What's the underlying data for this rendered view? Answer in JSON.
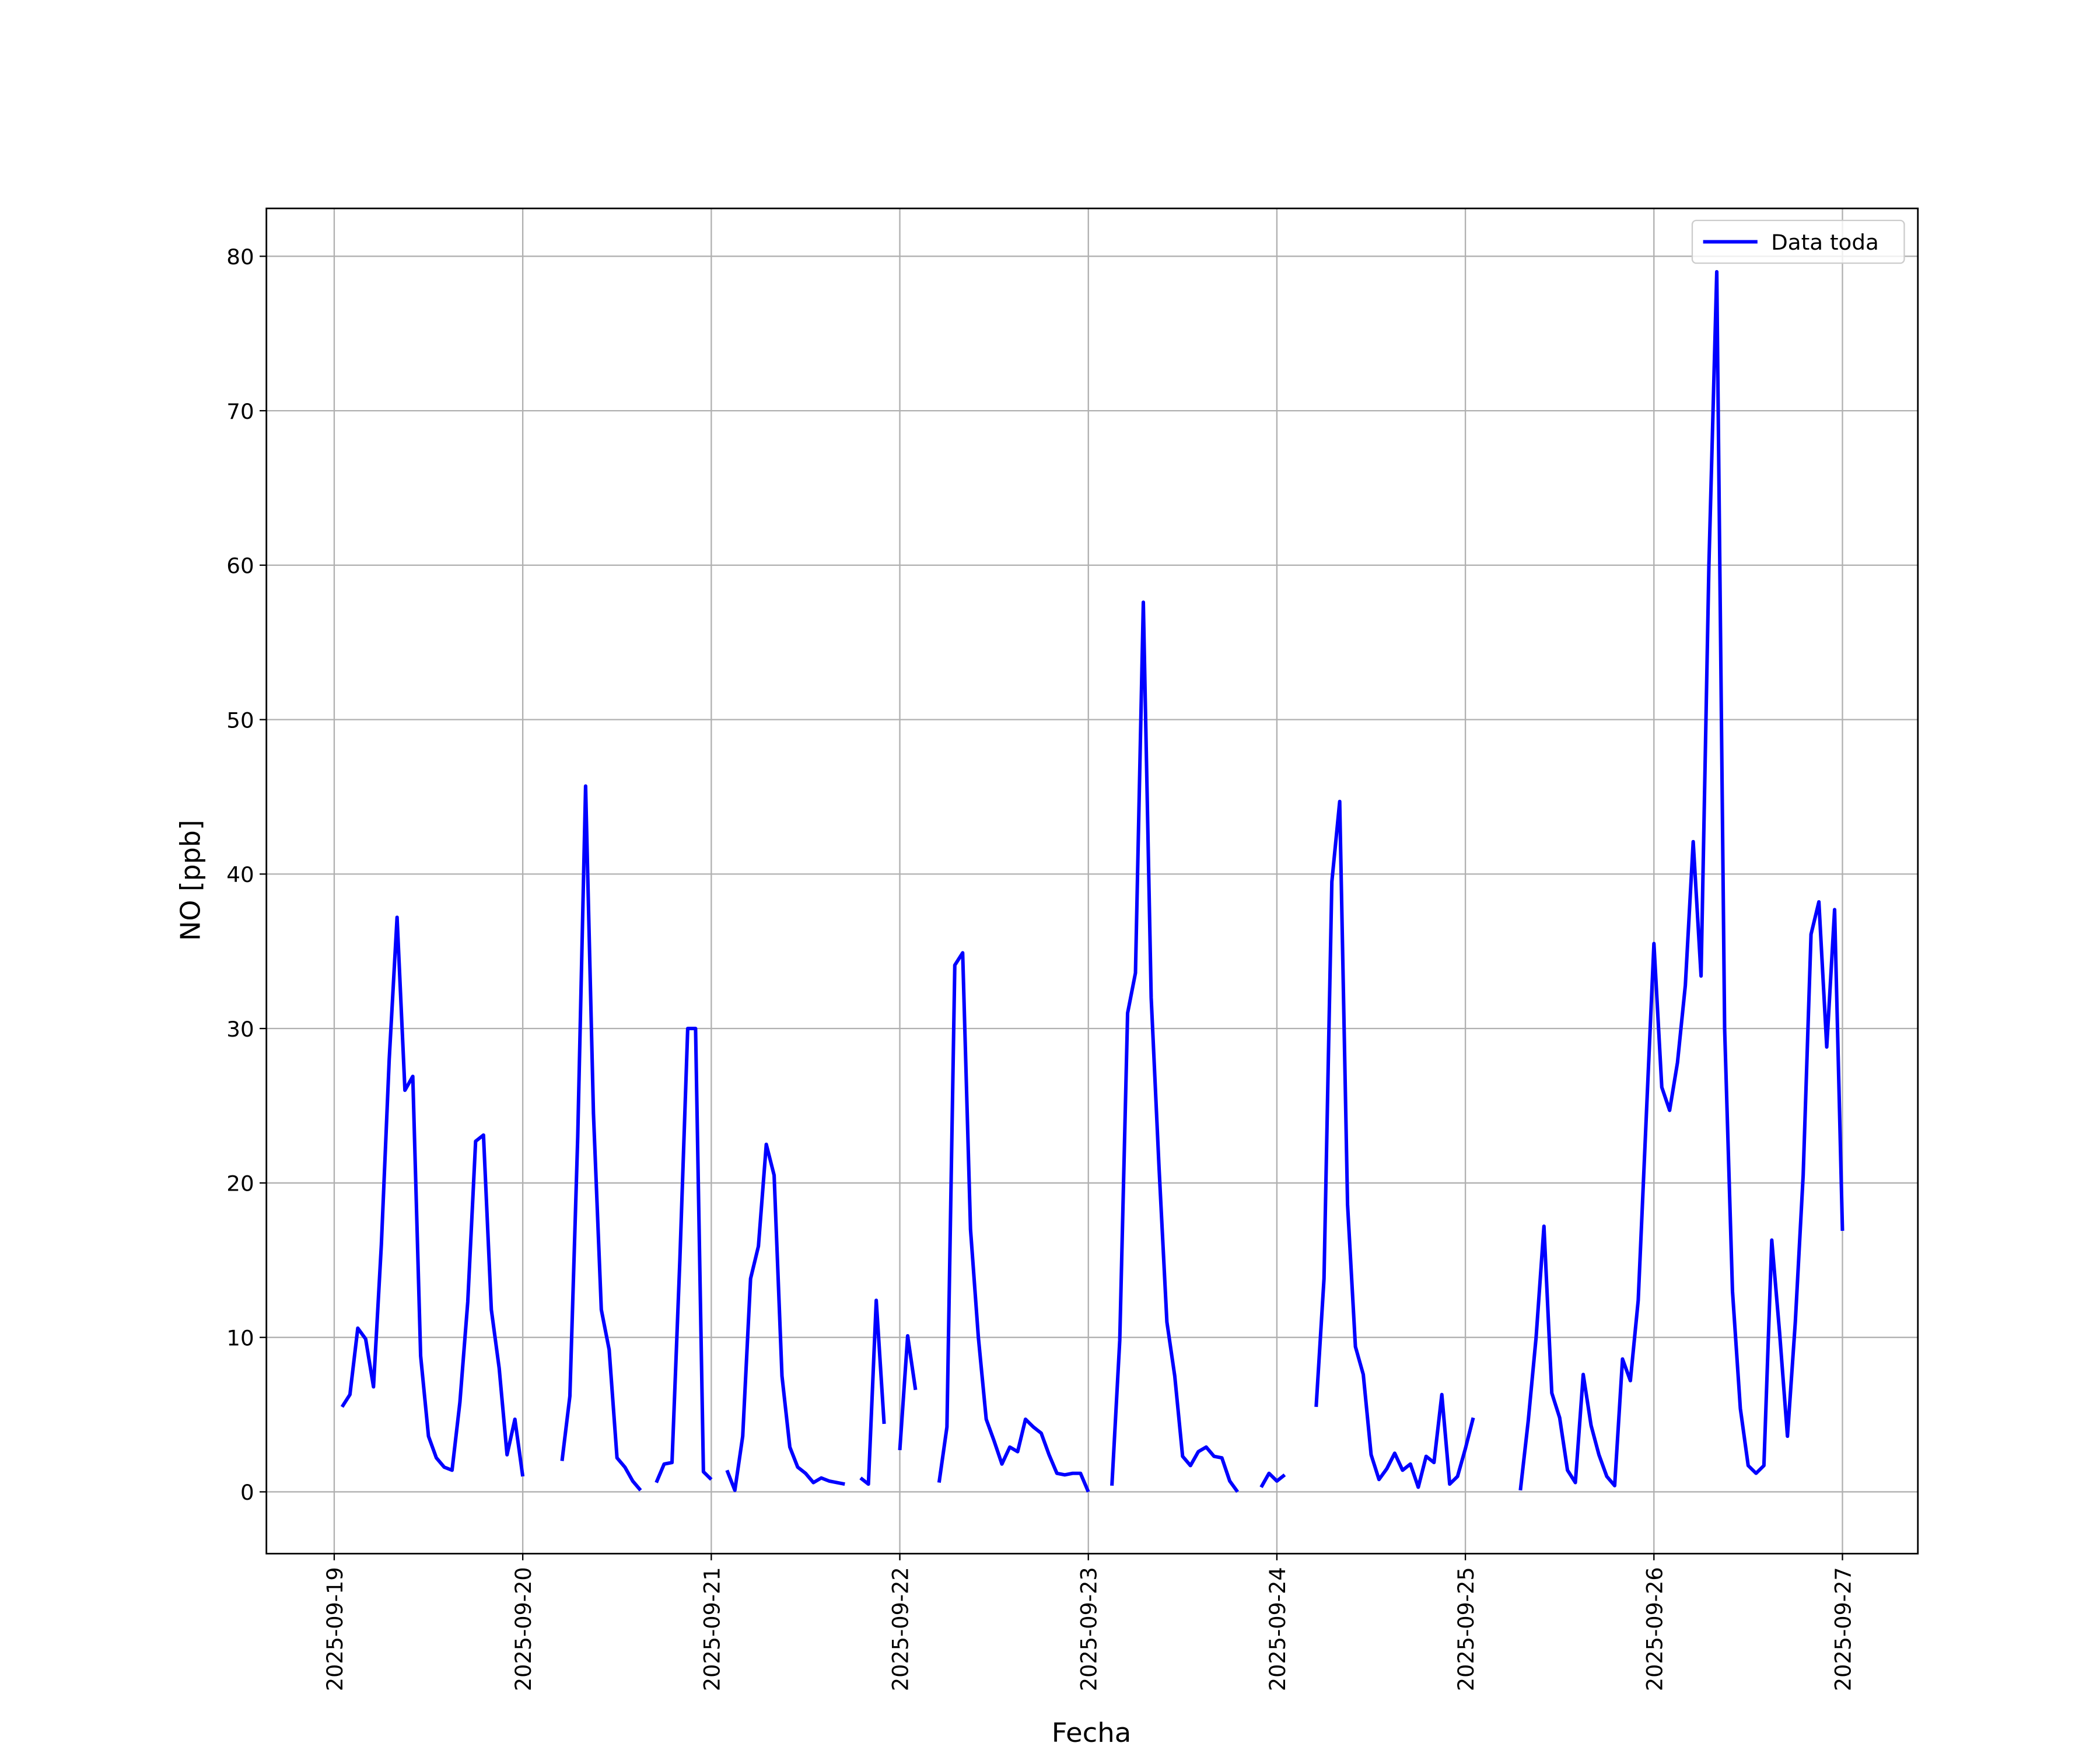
{
  "chart_data": {
    "type": "line",
    "xlabel": "Fecha",
    "ylabel": "NO [ppb]",
    "x": [
      "2025-09-19 01:00",
      "2025-09-19 02:00",
      "2025-09-19 03:00",
      "2025-09-19 04:00",
      "2025-09-19 05:00",
      "2025-09-19 06:00",
      "2025-09-19 07:00",
      "2025-09-19 08:00",
      "2025-09-19 09:00",
      "2025-09-19 10:00",
      "2025-09-19 11:00",
      "2025-09-19 12:00",
      "2025-09-19 13:00",
      "2025-09-19 14:00",
      "2025-09-19 15:00",
      "2025-09-19 16:00",
      "2025-09-19 17:00",
      "2025-09-19 18:00",
      "2025-09-19 19:00",
      "2025-09-19 20:00",
      "2025-09-19 21:00",
      "2025-09-19 22:00",
      "2025-09-19 23:00",
      "2025-09-20 00:00",
      "2025-09-20 01:00",
      "2025-09-20 02:00",
      "2025-09-20 03:00",
      "2025-09-20 04:00",
      "2025-09-20 05:00",
      "2025-09-20 06:00",
      "2025-09-20 07:00",
      "2025-09-20 08:00",
      "2025-09-20 09:00",
      "2025-09-20 10:00",
      "2025-09-20 11:00",
      "2025-09-20 12:00",
      "2025-09-20 13:00",
      "2025-09-20 14:00",
      "2025-09-20 15:00",
      "2025-09-20 16:00",
      "2025-09-20 17:00",
      "2025-09-20 18:00",
      "2025-09-20 19:00",
      "2025-09-20 20:00",
      "2025-09-20 21:00",
      "2025-09-20 22:00",
      "2025-09-20 23:00",
      "2025-09-21 00:00",
      "2025-09-21 01:00",
      "2025-09-21 02:00",
      "2025-09-21 03:00",
      "2025-09-21 04:00",
      "2025-09-21 05:00",
      "2025-09-21 06:00",
      "2025-09-21 07:00",
      "2025-09-21 08:00",
      "2025-09-21 09:00",
      "2025-09-21 10:00",
      "2025-09-21 11:00",
      "2025-09-21 12:00",
      "2025-09-21 13:00",
      "2025-09-21 14:00",
      "2025-09-21 15:00",
      "2025-09-21 16:00",
      "2025-09-21 17:00",
      "2025-09-21 18:00",
      "2025-09-21 19:00",
      "2025-09-21 20:00",
      "2025-09-21 21:00",
      "2025-09-21 22:00",
      "2025-09-21 23:00",
      "2025-09-22 00:00",
      "2025-09-22 01:00",
      "2025-09-22 02:00",
      "2025-09-22 03:00",
      "2025-09-22 04:00",
      "2025-09-22 05:00",
      "2025-09-22 06:00",
      "2025-09-22 07:00",
      "2025-09-22 08:00",
      "2025-09-22 09:00",
      "2025-09-22 10:00",
      "2025-09-22 11:00",
      "2025-09-22 12:00",
      "2025-09-22 13:00",
      "2025-09-22 14:00",
      "2025-09-22 15:00",
      "2025-09-22 16:00",
      "2025-09-22 17:00",
      "2025-09-22 18:00",
      "2025-09-22 19:00",
      "2025-09-22 20:00",
      "2025-09-22 21:00",
      "2025-09-22 22:00",
      "2025-09-22 23:00",
      "2025-09-23 00:00",
      "2025-09-23 01:00",
      "2025-09-23 02:00",
      "2025-09-23 03:00",
      "2025-09-23 04:00",
      "2025-09-23 05:00",
      "2025-09-23 06:00",
      "2025-09-23 07:00",
      "2025-09-23 08:00",
      "2025-09-23 09:00",
      "2025-09-23 10:00",
      "2025-09-23 11:00",
      "2025-09-23 12:00",
      "2025-09-23 13:00",
      "2025-09-23 14:00",
      "2025-09-23 15:00",
      "2025-09-23 16:00",
      "2025-09-23 17:00",
      "2025-09-23 18:00",
      "2025-09-23 19:00",
      "2025-09-23 20:00",
      "2025-09-23 21:00",
      "2025-09-23 22:00",
      "2025-09-23 23:00",
      "2025-09-24 00:00",
      "2025-09-24 01:00",
      "2025-09-24 02:00",
      "2025-09-24 03:00",
      "2025-09-24 04:00",
      "2025-09-24 05:00",
      "2025-09-24 06:00",
      "2025-09-24 07:00",
      "2025-09-24 08:00",
      "2025-09-24 09:00",
      "2025-09-24 10:00",
      "2025-09-24 11:00",
      "2025-09-24 12:00",
      "2025-09-24 13:00",
      "2025-09-24 14:00",
      "2025-09-24 15:00",
      "2025-09-24 16:00",
      "2025-09-24 17:00",
      "2025-09-24 18:00",
      "2025-09-24 19:00",
      "2025-09-24 20:00",
      "2025-09-24 21:00",
      "2025-09-24 22:00",
      "2025-09-24 23:00",
      "2025-09-25 00:00",
      "2025-09-25 01:00",
      "2025-09-25 02:00",
      "2025-09-25 03:00",
      "2025-09-25 04:00",
      "2025-09-25 05:00",
      "2025-09-25 06:00",
      "2025-09-25 07:00",
      "2025-09-25 08:00",
      "2025-09-25 09:00",
      "2025-09-25 10:00",
      "2025-09-25 11:00",
      "2025-09-25 12:00",
      "2025-09-25 13:00",
      "2025-09-25 14:00",
      "2025-09-25 15:00",
      "2025-09-25 16:00",
      "2025-09-25 17:00",
      "2025-09-25 18:00",
      "2025-09-25 19:00",
      "2025-09-25 20:00",
      "2025-09-25 21:00",
      "2025-09-25 22:00",
      "2025-09-25 23:00",
      "2025-09-26 00:00",
      "2025-09-26 01:00",
      "2025-09-26 02:00",
      "2025-09-26 03:00",
      "2025-09-26 04:00",
      "2025-09-26 05:00",
      "2025-09-26 06:00",
      "2025-09-26 07:00",
      "2025-09-26 08:00",
      "2025-09-26 09:00",
      "2025-09-26 10:00",
      "2025-09-26 11:00",
      "2025-09-26 12:00",
      "2025-09-26 13:00",
      "2025-09-26 14:00",
      "2025-09-26 15:00",
      "2025-09-26 16:00",
      "2025-09-26 17:00",
      "2025-09-26 18:00",
      "2025-09-26 19:00",
      "2025-09-26 20:00",
      "2025-09-26 21:00",
      "2025-09-26 22:00",
      "2025-09-26 23:00",
      "2025-09-27 00:00"
    ],
    "series": [
      {
        "name": "Data toda",
        "color": "#0000ff",
        "values": [
          5.5,
          6.3,
          10.6,
          9.9,
          6.8,
          16,
          28,
          37.2,
          26,
          26.9,
          8.8,
          3.6,
          2.2,
          1.6,
          1.4,
          5.8,
          12.3,
          22.7,
          23.1,
          11.8,
          8,
          2.4,
          4.7,
          1.0,
          null,
          null,
          null,
          null,
          2.0,
          6.2,
          23,
          45.7,
          24.5,
          11.8,
          9.2,
          2.2,
          1.6,
          0.7,
          0.1,
          null,
          0.6,
          1.8,
          1.9,
          15,
          30,
          30,
          1.3,
          0.8,
          null,
          1.4,
          0.1,
          3.6,
          13.8,
          15.9,
          22.5,
          20.5,
          7.5,
          2.9,
          1.6,
          1.2,
          0.6,
          0.9,
          0.7,
          0.6,
          0.5,
          null,
          0.9,
          0.5,
          12.4,
          4.4,
          null,
          2.7,
          10.1,
          6.6,
          null,
          null,
          0.6,
          4.2,
          34.1,
          34.9,
          17,
          10,
          4.7,
          3.3,
          1.8,
          2.9,
          2.6,
          4.7,
          4.2,
          3.8,
          2.4,
          1.2,
          1.1,
          1.2,
          1.2,
          0.0,
          null,
          null,
          0.4,
          9.8,
          31,
          33.6,
          57.6,
          32,
          21,
          11,
          7.5,
          2.3,
          1.7,
          2.6,
          2.9,
          2.3,
          2.2,
          0.7,
          0.0,
          null,
          null,
          0.3,
          1.2,
          0.7,
          1.1,
          null,
          null,
          null,
          5.5,
          13.8,
          39.5,
          44.7,
          18.6,
          9.4,
          7.6,
          2.4,
          0.8,
          1.5,
          2.5,
          1.4,
          1.8,
          0.3,
          2.3,
          1.9,
          6.3,
          0.5,
          1.0,
          2.8,
          4.8,
          null,
          null,
          null,
          null,
          null,
          0.1,
          4.6,
          10,
          17.2,
          6.4,
          4.8,
          1.4,
          0.6,
          7.6,
          4.3,
          2.4,
          1.0,
          0.4,
          8.6,
          7.2,
          12.4,
          24,
          35.5,
          26.2,
          24.7,
          27.8,
          32.8,
          42.1,
          33.4,
          60,
          79,
          30,
          13,
          5.4,
          1.7,
          1.2,
          1.7,
          16.3,
          10.3,
          3.6,
          11,
          20.5,
          36.1,
          38.2,
          28.8,
          37.7,
          16.9
        ]
      }
    ],
    "xlim": [
      "2025-09-18 15:22",
      "2025-09-27 09:36"
    ],
    "xticks": [
      "2025-09-19",
      "2025-09-20",
      "2025-09-21",
      "2025-09-22",
      "2025-09-23",
      "2025-09-24",
      "2025-09-25",
      "2025-09-26",
      "2025-09-27"
    ],
    "ylim": [
      -4,
      83.1
    ],
    "yticks": [
      0,
      10,
      20,
      30,
      40,
      50,
      60,
      70,
      80
    ],
    "grid": true,
    "legend": "upper right"
  }
}
